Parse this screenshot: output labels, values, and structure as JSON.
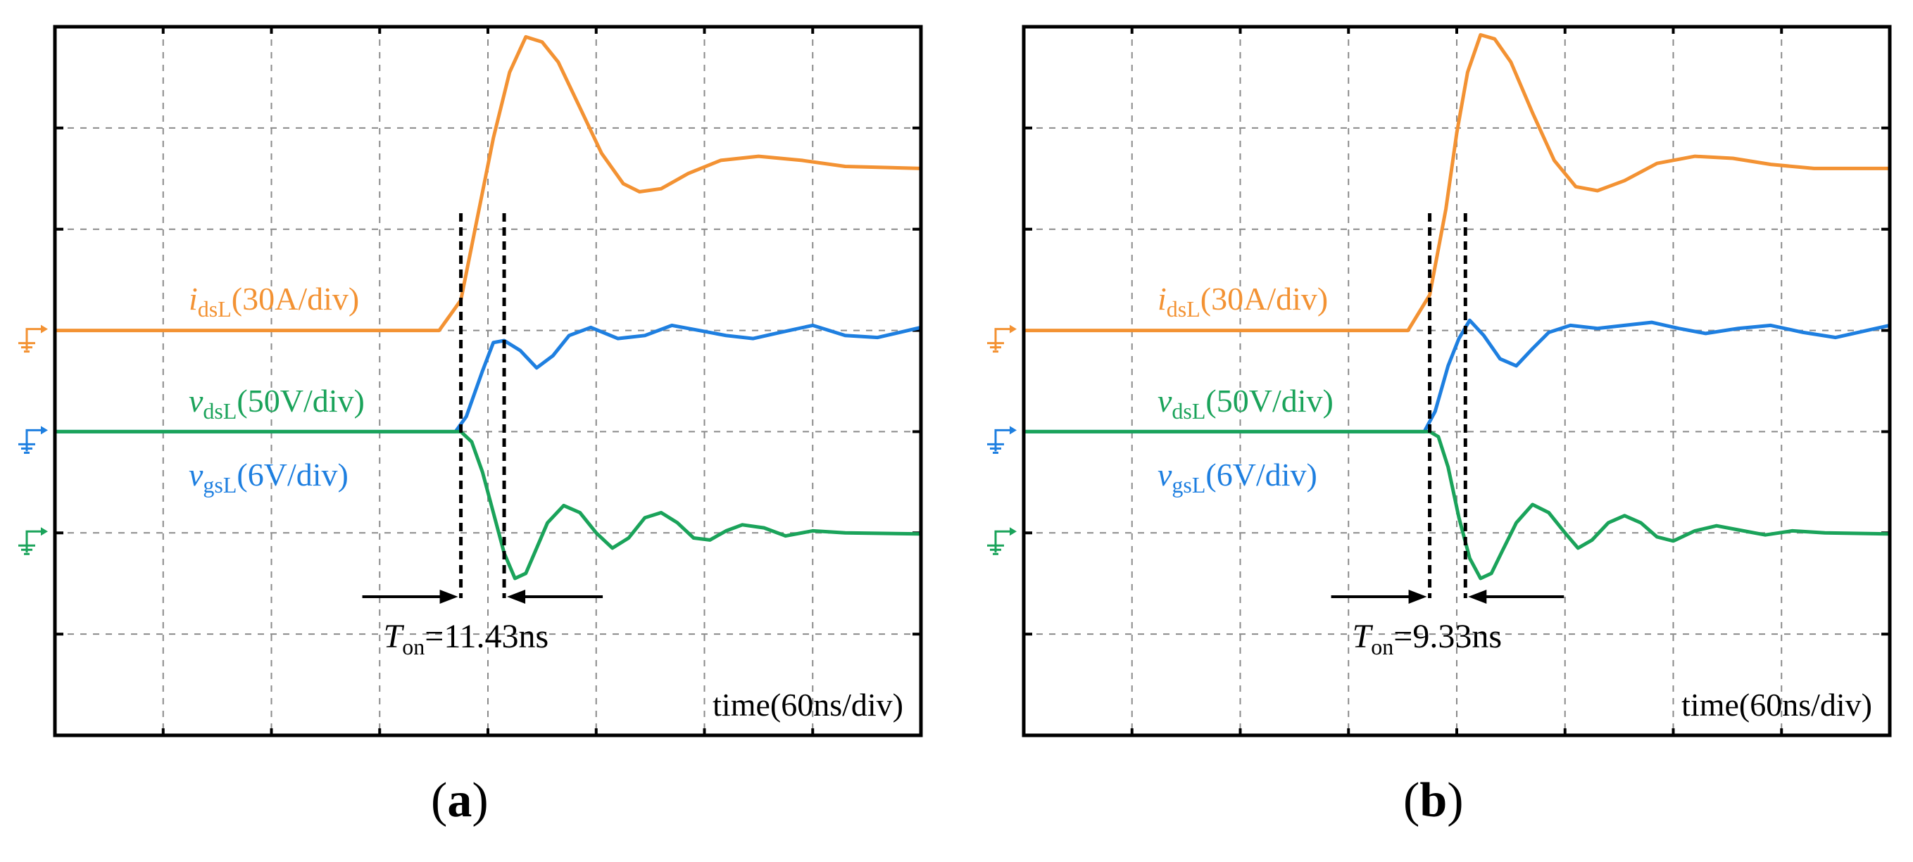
{
  "chart_data": [
    {
      "type": "line",
      "panel": "a",
      "caption": "(a)",
      "x_unit": "div",
      "y_unit": "div",
      "xlim": [
        0,
        8
      ],
      "ylim": [
        0,
        7
      ],
      "grid": true,
      "time_label": "time(60ns/div)",
      "switch_time": 3.75,
      "ton": {
        "left": 3.75,
        "right": 4.15,
        "symbol": "T",
        "sub": "on",
        "value": "=11.43ns"
      },
      "series": [
        {
          "name": "i_dsL",
          "label_main": "i",
          "label_sub": "dsL",
          "label_scale": "(30A/div)",
          "color": "#F39233",
          "ground_level": 4,
          "points": [
            [
              0,
              4
            ],
            [
              3.55,
              4
            ],
            [
              3.75,
              4.3
            ],
            [
              3.9,
              5.1
            ],
            [
              4.05,
              5.9
            ],
            [
              4.2,
              6.55
            ],
            [
              4.35,
              6.9
            ],
            [
              4.5,
              6.85
            ],
            [
              4.65,
              6.65
            ],
            [
              4.85,
              6.2
            ],
            [
              5.05,
              5.75
            ],
            [
              5.25,
              5.45
            ],
            [
              5.4,
              5.37
            ],
            [
              5.6,
              5.4
            ],
            [
              5.85,
              5.55
            ],
            [
              6.15,
              5.68
            ],
            [
              6.5,
              5.72
            ],
            [
              6.9,
              5.68
            ],
            [
              7.3,
              5.62
            ],
            [
              8,
              5.6
            ]
          ]
        },
        {
          "name": "v_gsL",
          "label_main": "v",
          "label_sub": "gsL",
          "label_scale": "(6V/div)",
          "color": "#1E7FE0",
          "ground_level": 3,
          "points": [
            [
              0,
              3
            ],
            [
              3.7,
              3
            ],
            [
              3.8,
              3.15
            ],
            [
              3.95,
              3.6
            ],
            [
              4.05,
              3.88
            ],
            [
              4.15,
              3.9
            ],
            [
              4.3,
              3.8
            ],
            [
              4.45,
              3.63
            ],
            [
              4.6,
              3.75
            ],
            [
              4.75,
              3.95
            ],
            [
              4.95,
              4.03
            ],
            [
              5.2,
              3.92
            ],
            [
              5.45,
              3.95
            ],
            [
              5.7,
              4.05
            ],
            [
              5.95,
              4.0
            ],
            [
              6.2,
              3.95
            ],
            [
              6.45,
              3.92
            ],
            [
              6.7,
              3.98
            ],
            [
              7.0,
              4.05
            ],
            [
              7.3,
              3.95
            ],
            [
              7.6,
              3.93
            ],
            [
              8,
              4.03
            ]
          ]
        },
        {
          "name": "v_dsL",
          "label_main": "v",
          "label_sub": "dsL",
          "label_scale": "(50V/div)",
          "color": "#1AA35A",
          "ground_level": 2,
          "points": [
            [
              0,
              3
            ],
            [
              3.75,
              3
            ],
            [
              3.85,
              2.9
            ],
            [
              3.95,
              2.6
            ],
            [
              4.05,
              2.2
            ],
            [
              4.15,
              1.8
            ],
            [
              4.25,
              1.55
            ],
            [
              4.35,
              1.6
            ],
            [
              4.45,
              1.85
            ],
            [
              4.55,
              2.1
            ],
            [
              4.7,
              2.27
            ],
            [
              4.85,
              2.2
            ],
            [
              5.0,
              2.0
            ],
            [
              5.15,
              1.85
            ],
            [
              5.3,
              1.95
            ],
            [
              5.45,
              2.15
            ],
            [
              5.6,
              2.2
            ],
            [
              5.75,
              2.1
            ],
            [
              5.9,
              1.95
            ],
            [
              6.05,
              1.93
            ],
            [
              6.2,
              2.02
            ],
            [
              6.35,
              2.08
            ],
            [
              6.55,
              2.05
            ],
            [
              6.75,
              1.97
            ],
            [
              7.0,
              2.02
            ],
            [
              7.3,
              2.0
            ],
            [
              8,
              1.99
            ]
          ]
        }
      ]
    },
    {
      "type": "line",
      "panel": "b",
      "caption": "(b)",
      "x_unit": "div",
      "y_unit": "div",
      "xlim": [
        0,
        8
      ],
      "ylim": [
        0,
        7
      ],
      "grid": true,
      "time_label": "time(60ns/div)",
      "switch_time": 3.75,
      "ton": {
        "left": 3.75,
        "right": 4.08,
        "symbol": "T",
        "sub": "on",
        "value": "=9.33ns"
      },
      "series": [
        {
          "name": "i_dsL",
          "label_main": "i",
          "label_sub": "dsL",
          "label_scale": "(30A/div)",
          "color": "#F39233",
          "ground_level": 4,
          "points": [
            [
              0,
              4
            ],
            [
              3.55,
              4
            ],
            [
              3.75,
              4.35
            ],
            [
              3.9,
              5.2
            ],
            [
              4.0,
              5.95
            ],
            [
              4.1,
              6.55
            ],
            [
              4.22,
              6.92
            ],
            [
              4.35,
              6.88
            ],
            [
              4.5,
              6.65
            ],
            [
              4.7,
              6.15
            ],
            [
              4.9,
              5.68
            ],
            [
              5.1,
              5.42
            ],
            [
              5.3,
              5.38
            ],
            [
              5.55,
              5.48
            ],
            [
              5.85,
              5.65
            ],
            [
              6.2,
              5.72
            ],
            [
              6.55,
              5.7
            ],
            [
              6.9,
              5.64
            ],
            [
              7.3,
              5.6
            ],
            [
              8,
              5.6
            ]
          ]
        },
        {
          "name": "v_gsL",
          "label_main": "v",
          "label_sub": "gsL",
          "label_scale": "(6V/div)",
          "color": "#1E7FE0",
          "ground_level": 3,
          "points": [
            [
              0,
              3
            ],
            [
              3.7,
              3
            ],
            [
              3.8,
              3.2
            ],
            [
              3.92,
              3.65
            ],
            [
              4.02,
              3.92
            ],
            [
              4.12,
              4.1
            ],
            [
              4.25,
              3.95
            ],
            [
              4.4,
              3.72
            ],
            [
              4.55,
              3.65
            ],
            [
              4.7,
              3.82
            ],
            [
              4.85,
              3.98
            ],
            [
              5.05,
              4.05
            ],
            [
              5.3,
              4.02
            ],
            [
              5.55,
              4.05
            ],
            [
              5.8,
              4.08
            ],
            [
              6.05,
              4.02
            ],
            [
              6.3,
              3.97
            ],
            [
              6.6,
              4.02
            ],
            [
              6.9,
              4.05
            ],
            [
              7.2,
              3.98
            ],
            [
              7.5,
              3.93
            ],
            [
              8,
              4.05
            ]
          ]
        },
        {
          "name": "v_dsL",
          "label_main": "v",
          "label_sub": "dsL",
          "label_scale": "(50V/div)",
          "color": "#1AA35A",
          "ground_level": 2,
          "points": [
            [
              0,
              3
            ],
            [
              3.75,
              3
            ],
            [
              3.83,
              2.95
            ],
            [
              3.92,
              2.65
            ],
            [
              4.02,
              2.15
            ],
            [
              4.12,
              1.75
            ],
            [
              4.22,
              1.55
            ],
            [
              4.32,
              1.6
            ],
            [
              4.42,
              1.82
            ],
            [
              4.55,
              2.1
            ],
            [
              4.7,
              2.28
            ],
            [
              4.85,
              2.2
            ],
            [
              5.0,
              2.0
            ],
            [
              5.12,
              1.85
            ],
            [
              5.25,
              1.93
            ],
            [
              5.4,
              2.1
            ],
            [
              5.55,
              2.17
            ],
            [
              5.7,
              2.1
            ],
            [
              5.85,
              1.96
            ],
            [
              6.0,
              1.92
            ],
            [
              6.2,
              2.02
            ],
            [
              6.4,
              2.07
            ],
            [
              6.6,
              2.03
            ],
            [
              6.85,
              1.98
            ],
            [
              7.1,
              2.02
            ],
            [
              7.4,
              2.0
            ],
            [
              8,
              1.99
            ]
          ]
        }
      ]
    }
  ]
}
